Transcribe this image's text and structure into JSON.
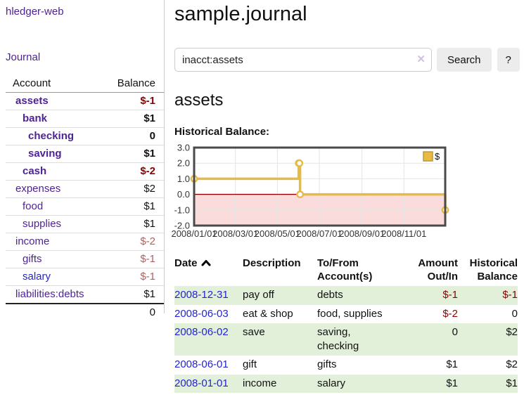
{
  "app": {
    "brand": "hledger-web",
    "nav_journal": "Journal"
  },
  "icons": {
    "clear": "✕",
    "sort_ascending": "⌃"
  },
  "sidebar": {
    "accounts_header": {
      "account": "Account",
      "balance": "Balance"
    },
    "accounts": [
      {
        "name": "assets",
        "balance": "$-1",
        "level": 1,
        "bold": true,
        "negative": true,
        "muted": false,
        "blue": false
      },
      {
        "name": "bank",
        "balance": "$1",
        "level": 2,
        "bold": true,
        "negative": false,
        "muted": false,
        "blue": false
      },
      {
        "name": "checking",
        "balance": "0",
        "level": 3,
        "bold": true,
        "negative": false,
        "muted": false,
        "blue": false
      },
      {
        "name": "saving",
        "balance": "$1",
        "level": 3,
        "bold": true,
        "negative": false,
        "muted": false,
        "blue": false
      },
      {
        "name": "cash",
        "balance": "$-2",
        "level": 2,
        "bold": true,
        "negative": true,
        "muted": false,
        "blue": false
      },
      {
        "name": "expenses",
        "balance": "$2",
        "level": 1,
        "bold": false,
        "negative": false,
        "muted": false,
        "blue": false
      },
      {
        "name": "food",
        "balance": "$1",
        "level": 2,
        "bold": false,
        "negative": false,
        "muted": false,
        "blue": false
      },
      {
        "name": "supplies",
        "balance": "$1",
        "level": 2,
        "bold": false,
        "negative": false,
        "muted": false,
        "blue": false
      },
      {
        "name": "income",
        "balance": "$-2",
        "level": 1,
        "bold": false,
        "negative": true,
        "muted": true,
        "blue": false
      },
      {
        "name": "gifts",
        "balance": "$-1",
        "level": 2,
        "bold": false,
        "negative": true,
        "muted": true,
        "blue": false
      },
      {
        "name": "salary",
        "balance": "$-1",
        "level": 2,
        "bold": false,
        "negative": true,
        "muted": true,
        "blue": true
      },
      {
        "name": "liabilities:debts",
        "balance": "$1",
        "level": 1,
        "bold": false,
        "negative": false,
        "muted": false,
        "blue": false
      }
    ],
    "total": "0"
  },
  "header": {
    "title": "sample.journal"
  },
  "search": {
    "value": "inacct:assets",
    "search_label": "Search",
    "help_label": "?"
  },
  "account_view": {
    "heading": "assets",
    "chart_label": "Historical Balance:"
  },
  "chart_data": {
    "type": "line",
    "step": true,
    "title": "Historical Balance:",
    "legend": {
      "label": "$",
      "position": "top-right"
    },
    "x_ticks": [
      {
        "label": "2008/01/01",
        "day": 0
      },
      {
        "label": "2008/03/01",
        "day": 60
      },
      {
        "label": "2008/05/01",
        "day": 121
      },
      {
        "label": "2008/07/01",
        "day": 182
      },
      {
        "label": "2008/09/01",
        "day": 244
      },
      {
        "label": "2008/11/01",
        "day": 305
      }
    ],
    "x_range_days": [
      0,
      365
    ],
    "y_ticks": [
      {
        "label": "3.0",
        "value": 3
      },
      {
        "label": "2.0",
        "value": 2
      },
      {
        "label": "1.0",
        "value": 1
      },
      {
        "label": "0.0",
        "value": 0
      },
      {
        "label": "-1.0",
        "value": -1
      },
      {
        "label": "-2.0",
        "value": -2
      }
    ],
    "ylim": [
      -2,
      3
    ],
    "series": [
      {
        "name": "$",
        "color": "#E6BB45",
        "marker_fill": "#ffffff",
        "points": [
          {
            "date": "2008-01-01",
            "day": 0,
            "value": 1
          },
          {
            "date": "2008-06-01",
            "day": 152,
            "value": 2
          },
          {
            "date": "2008-06-02",
            "day": 153,
            "value": 2
          },
          {
            "date": "2008-06-03",
            "day": 154,
            "value": 0
          },
          {
            "date": "2008-12-31",
            "day": 365,
            "value": -1
          }
        ]
      }
    ],
    "grid": {
      "color": "#e4e4e4",
      "zero_line_color": "#8b0000",
      "negative_region_color": "#fbdcdc",
      "border_color": "#4a4a4a"
    }
  },
  "register": {
    "columns": [
      {
        "label": "Date",
        "sort": "ascending"
      },
      {
        "label": "Description"
      },
      {
        "label": "To/From Account(s)"
      },
      {
        "label": "Amount Out/In"
      },
      {
        "label": "Historical Balance"
      }
    ],
    "rows": [
      {
        "date": "2008-12-31",
        "description": "pay off",
        "accounts": "debts",
        "amount": "$-1",
        "amount_neg": true,
        "balance": "$-1",
        "balance_neg": true
      },
      {
        "date": "2008-06-03",
        "description": "eat & shop",
        "accounts": "food, supplies",
        "amount": "$-2",
        "amount_neg": true,
        "balance": "0",
        "balance_neg": false
      },
      {
        "date": "2008-06-02",
        "description": "save",
        "accounts": "saving, checking",
        "amount": "0",
        "amount_neg": false,
        "balance": "$2",
        "balance_neg": false
      },
      {
        "date": "2008-06-01",
        "description": "gift",
        "accounts": "gifts",
        "amount": "$1",
        "amount_neg": false,
        "balance": "$2",
        "balance_neg": false
      },
      {
        "date": "2008-01-01",
        "description": "income",
        "accounts": "salary",
        "amount": "$1",
        "amount_neg": false,
        "balance": "$1",
        "balance_neg": false
      }
    ]
  }
}
